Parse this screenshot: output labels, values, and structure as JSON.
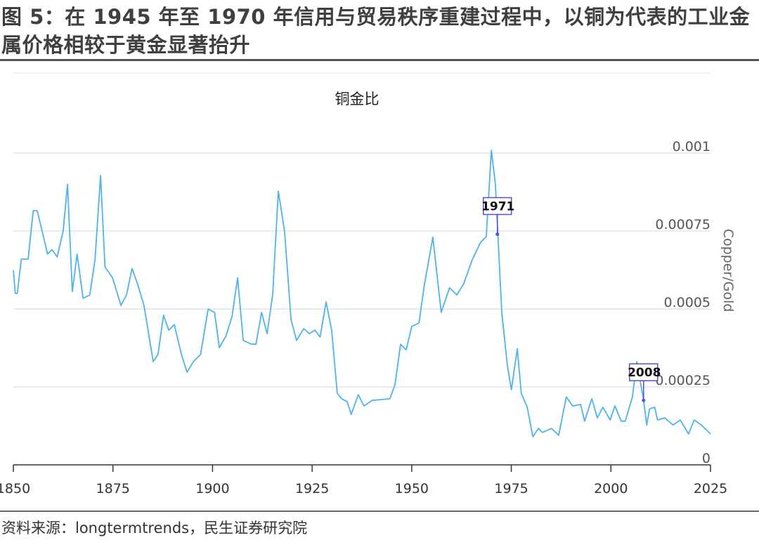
{
  "header": {
    "title": "图 5：在 1945 年至 1970 年信用与贸易秩序重建过程中，以铜为代表的工业金属价格相较于黄金显著抬升"
  },
  "footer": {
    "source": "资料来源：longtermtrends，民生证券研究院"
  },
  "colors": {
    "line": "#4fb3ea",
    "annotation": "#5a4fcf",
    "grid": "#e3e3e3"
  },
  "chart_data": {
    "type": "line",
    "title": "铜金比",
    "xlabel": "",
    "ylabel": "Copper/Gold",
    "xlim": [
      1850,
      2025
    ],
    "ylim": [
      0,
      0.001
    ],
    "x_ticks": [
      "1850",
      "1875",
      "1900",
      "1925",
      "1950",
      "1975",
      "2000",
      "2025"
    ],
    "y_ticks": [
      "0",
      "0.00025",
      "0.0005",
      "0.00075",
      "0.001"
    ],
    "y_axis_position": "right",
    "grid": true,
    "series": [
      {
        "x": [
          1850,
          1850.5,
          1851,
          1852,
          1853.7,
          1855,
          1856,
          1858.6,
          1859.7,
          1861,
          1862.5,
          1863.6,
          1864.8,
          1866,
          1867.5,
          1869.2,
          1870.5,
          1871.9,
          1873,
          1874.9,
          1877,
          1878.4,
          1879.8,
          1881.2,
          1882.8,
          1885.1,
          1886.3,
          1887.7,
          1889,
          1890.4,
          1892.2,
          1893.6,
          1895.2,
          1897,
          1898.9,
          1900.5,
          1901.7,
          1903.4,
          1904.9,
          1906.3,
          1907.7,
          1909.8,
          1910.9,
          1912.3,
          1913.7,
          1915.1,
          1916.5,
          1918.1,
          1919.7,
          1921.1,
          1922.9,
          1924.3,
          1925.7,
          1927,
          1928.5,
          1929.9,
          1931.3,
          1932.4,
          1933.8,
          1934.8,
          1936.6,
          1938,
          1940.1,
          1944.5,
          1945.8,
          1947.2,
          1948.6,
          1950,
          1951.8,
          1953.2,
          1955.3,
          1957.4,
          1959.5,
          1961.3,
          1963,
          1965.2,
          1967.3,
          1968.7,
          1970,
          1971,
          1972.6,
          1974,
          1975,
          1976.5,
          1977.5,
          1979,
          1980.4,
          1981.8,
          1982.8,
          1985.1,
          1986.9,
          1988.8,
          1990.4,
          1992.4,
          1993.4,
          1995.2,
          1996.6,
          1998,
          1999.8,
          2001,
          2002.6,
          2003.6,
          2005.4,
          2006.5,
          2008.2,
          2009,
          2009.7,
          2011,
          2011.7,
          2013.5,
          2015.6,
          2017.4,
          2019.5,
          2020.9,
          2022.7,
          2025
        ],
        "y": [
          0.000624,
          0.00055,
          0.00055,
          0.00066,
          0.00066,
          0.000815,
          0.000815,
          0.000676,
          0.00069,
          0.000667,
          0.00075,
          0.0009,
          0.000556,
          0.000676,
          0.000534,
          0.000545,
          0.000658,
          0.000928,
          0.000635,
          0.0006,
          0.000511,
          0.000545,
          0.00063,
          0.000579,
          0.000511,
          0.000331,
          0.000354,
          0.00048,
          0.000432,
          0.00045,
          0.000354,
          0.000297,
          0.000331,
          0.000354,
          0.0005,
          0.000489,
          0.000376,
          0.000414,
          0.000477,
          0.0006,
          0.000399,
          0.000387,
          0.000387,
          0.000489,
          0.000421,
          0.000545,
          0.000878,
          0.000748,
          0.000466,
          0.000399,
          0.000437,
          0.000421,
          0.000432,
          0.00041,
          0.000523,
          0.000432,
          0.00023,
          0.000212,
          0.000203,
          0.000162,
          0.000225,
          0.000189,
          0.000207,
          0.000212,
          0.000257,
          0.000387,
          0.000369,
          0.000444,
          0.000455,
          0.000579,
          0.00073,
          0.000489,
          0.000568,
          0.000545,
          0.000579,
          0.000658,
          0.000714,
          0.000732,
          0.001009,
          0.0009,
          0.000489,
          0.00032,
          0.000241,
          0.000372,
          0.00023,
          0.000185,
          9e-05,
          0.000117,
          0.000104,
          0.000117,
          9.5e-05,
          0.000218,
          0.000189,
          0.000194,
          0.00014,
          0.000212,
          0.000151,
          0.000185,
          0.000144,
          0.000189,
          0.00014,
          0.00014,
          0.000218,
          0.000331,
          0.000207,
          0.000128,
          0.00018,
          0.000185,
          0.000144,
          0.000151,
          0.000128,
          0.000144,
          9.9e-05,
          0.000144,
          0.000128,
          9.9e-05
        ]
      }
    ],
    "annotations": [
      {
        "label": "1971",
        "x": 1971.5,
        "y": 0.00074
      },
      {
        "label": "2008",
        "x": 2008.2,
        "y": 0.000207
      }
    ]
  }
}
